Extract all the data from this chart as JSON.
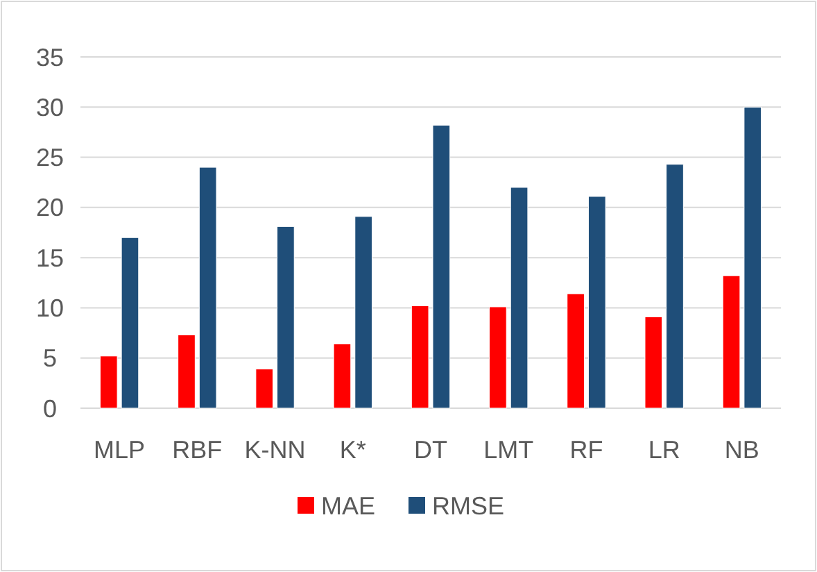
{
  "chart_data": {
    "type": "bar",
    "categories": [
      "MLP",
      "RBF",
      "K-NN",
      "K*",
      "DT",
      "LMT",
      "RF",
      "LR",
      "NB"
    ],
    "series": [
      {
        "name": "MAE",
        "color": "#ff0000",
        "values": [
          5.2,
          7.3,
          3.9,
          6.4,
          10.2,
          10.1,
          11.4,
          9.1,
          13.2
        ]
      },
      {
        "name": "RMSE",
        "color": "#1f4e79",
        "values": [
          17.0,
          24.0,
          18.1,
          19.1,
          28.2,
          22.0,
          21.1,
          24.3,
          30.0
        ]
      }
    ],
    "ylim": [
      0,
      35
    ],
    "yticks": [
      0,
      5,
      10,
      15,
      20,
      25,
      30,
      35
    ],
    "grid": "y",
    "legend": "bottom"
  }
}
